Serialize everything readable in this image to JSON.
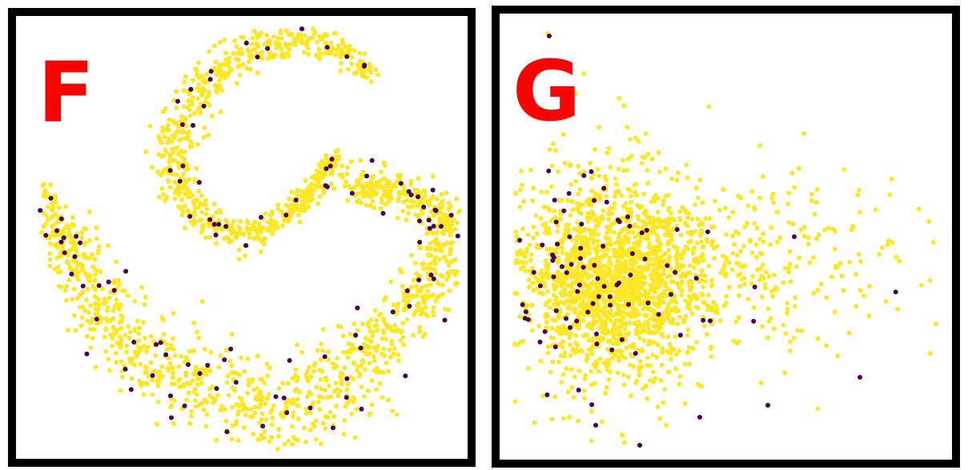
{
  "panels": [
    {
      "label": "F",
      "chart_data": {
        "type": "scatter",
        "title": "",
        "xlabel": "",
        "ylabel": "",
        "grid": false,
        "legend": "none",
        "series": [
          {
            "class": 0,
            "color": "#fde725",
            "count": 2000
          },
          {
            "class": 1,
            "color": "#440154",
            "count": 120
          }
        ],
        "description_shape": "two curved arms (inner spiral and lower crescent)"
      }
    },
    {
      "label": "G",
      "chart_data": {
        "type": "scatter",
        "title": "",
        "xlabel": "",
        "ylabel": "",
        "grid": false,
        "legend": "none",
        "series": [
          {
            "class": 0,
            "color": "#fde725",
            "count": 2000
          },
          {
            "class": 1,
            "color": "#440154",
            "count": 110
          }
        ],
        "description_shape": "dense elliptical cloud with long right tail"
      }
    }
  ],
  "style": {
    "label_color": "#ff0000",
    "yellow": "#fde725",
    "purple": "#440154",
    "border": "#000000"
  }
}
